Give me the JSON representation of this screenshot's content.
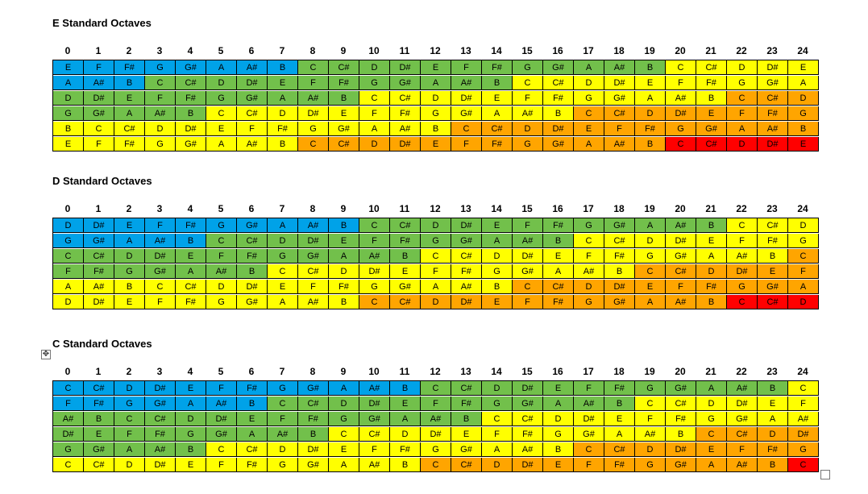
{
  "frets": [
    "0",
    "1",
    "2",
    "3",
    "4",
    "5",
    "6",
    "7",
    "8",
    "9",
    "10",
    "11",
    "12",
    "13",
    "14",
    "15",
    "16",
    "17",
    "18",
    "19",
    "20",
    "21",
    "22",
    "23",
    "24"
  ],
  "colors": {
    "B": "#00a2e8",
    "G": "#72c04b",
    "Y": "#ffff00",
    "O": "#ffa500",
    "R": "#ff0000"
  },
  "tables": [
    {
      "title": "E Standard Octaves",
      "rows": [
        {
          "notes": [
            "E",
            "F",
            "F#",
            "G",
            "G#",
            "A",
            "A#",
            "B",
            "C",
            "C#",
            "D",
            "D#",
            "E",
            "F",
            "F#",
            "G",
            "G#",
            "A",
            "A#",
            "B",
            "C",
            "C#",
            "D",
            "D#",
            "E"
          ],
          "colors": [
            "B",
            "B",
            "B",
            "B",
            "B",
            "B",
            "B",
            "B",
            "G",
            "G",
            "G",
            "G",
            "G",
            "G",
            "G",
            "G",
            "G",
            "G",
            "G",
            "G",
            "Y",
            "Y",
            "Y",
            "Y",
            "Y"
          ]
        },
        {
          "notes": [
            "A",
            "A#",
            "B",
            "C",
            "C#",
            "D",
            "D#",
            "E",
            "F",
            "F#",
            "G",
            "G#",
            "A",
            "A#",
            "B",
            "C",
            "C#",
            "D",
            "D#",
            "E",
            "F",
            "F#",
            "G",
            "G#",
            "A"
          ],
          "colors": [
            "B",
            "B",
            "B",
            "G",
            "G",
            "G",
            "G",
            "G",
            "G",
            "G",
            "G",
            "G",
            "G",
            "G",
            "G",
            "Y",
            "Y",
            "Y",
            "Y",
            "Y",
            "Y",
            "Y",
            "Y",
            "Y",
            "Y"
          ]
        },
        {
          "notes": [
            "D",
            "D#",
            "E",
            "F",
            "F#",
            "G",
            "G#",
            "A",
            "A#",
            "B",
            "C",
            "C#",
            "D",
            "D#",
            "E",
            "F",
            "F#",
            "G",
            "G#",
            "A",
            "A#",
            "B",
            "C",
            "C#",
            "D"
          ],
          "colors": [
            "G",
            "G",
            "G",
            "G",
            "G",
            "G",
            "G",
            "G",
            "G",
            "G",
            "Y",
            "Y",
            "Y",
            "Y",
            "Y",
            "Y",
            "Y",
            "Y",
            "Y",
            "Y",
            "Y",
            "Y",
            "O",
            "O",
            "O"
          ]
        },
        {
          "notes": [
            "G",
            "G#",
            "A",
            "A#",
            "B",
            "C",
            "C#",
            "D",
            "D#",
            "E",
            "F",
            "F#",
            "G",
            "G#",
            "A",
            "A#",
            "B",
            "C",
            "C#",
            "D",
            "D#",
            "E",
            "F",
            "F#",
            "G"
          ],
          "colors": [
            "G",
            "G",
            "G",
            "G",
            "G",
            "Y",
            "Y",
            "Y",
            "Y",
            "Y",
            "Y",
            "Y",
            "Y",
            "Y",
            "Y",
            "Y",
            "Y",
            "O",
            "O",
            "O",
            "O",
            "O",
            "O",
            "O",
            "O"
          ]
        },
        {
          "notes": [
            "B",
            "C",
            "C#",
            "D",
            "D#",
            "E",
            "F",
            "F#",
            "G",
            "G#",
            "A",
            "A#",
            "B",
            "C",
            "C#",
            "D",
            "D#",
            "E",
            "F",
            "F#",
            "G",
            "G#",
            "A",
            "A#",
            "B"
          ],
          "colors": [
            "Y",
            "Y",
            "Y",
            "Y",
            "Y",
            "Y",
            "Y",
            "Y",
            "Y",
            "Y",
            "Y",
            "Y",
            "Y",
            "O",
            "O",
            "O",
            "O",
            "O",
            "O",
            "O",
            "O",
            "O",
            "O",
            "O",
            "O"
          ]
        },
        {
          "notes": [
            "E",
            "F",
            "F#",
            "G",
            "G#",
            "A",
            "A#",
            "B",
            "C",
            "C#",
            "D",
            "D#",
            "E",
            "F",
            "F#",
            "G",
            "G#",
            "A",
            "A#",
            "B",
            "C",
            "C#",
            "D",
            "D#",
            "E"
          ],
          "colors": [
            "Y",
            "Y",
            "Y",
            "Y",
            "Y",
            "Y",
            "Y",
            "Y",
            "O",
            "O",
            "O",
            "O",
            "O",
            "O",
            "O",
            "O",
            "O",
            "O",
            "O",
            "O",
            "R",
            "R",
            "R",
            "R",
            "R"
          ]
        }
      ]
    },
    {
      "title": "D Standard Octaves",
      "rows": [
        {
          "notes": [
            "D",
            "D#",
            "E",
            "F",
            "F#",
            "G",
            "G#",
            "A",
            "A#",
            "B",
            "C",
            "C#",
            "D",
            "D#",
            "E",
            "F",
            "F#",
            "G",
            "G#",
            "A",
            "A#",
            "B",
            "C",
            "C#",
            "D"
          ],
          "colors": [
            "B",
            "B",
            "B",
            "B",
            "B",
            "B",
            "B",
            "B",
            "B",
            "B",
            "G",
            "G",
            "G",
            "G",
            "G",
            "G",
            "G",
            "G",
            "G",
            "G",
            "G",
            "G",
            "Y",
            "Y",
            "Y"
          ]
        },
        {
          "notes": [
            "G",
            "G#",
            "A",
            "A#",
            "B",
            "C",
            "C#",
            "D",
            "D#",
            "E",
            "F",
            "F#",
            "G",
            "G#",
            "A",
            "A#",
            "B",
            "C",
            "C#",
            "D",
            "D#",
            "E",
            "F",
            "F#",
            "G"
          ],
          "colors": [
            "B",
            "B",
            "B",
            "B",
            "B",
            "G",
            "G",
            "G",
            "G",
            "G",
            "G",
            "G",
            "G",
            "G",
            "G",
            "G",
            "G",
            "Y",
            "Y",
            "Y",
            "Y",
            "Y",
            "Y",
            "Y",
            "Y"
          ]
        },
        {
          "notes": [
            "C",
            "C#",
            "D",
            "D#",
            "E",
            "F",
            "F#",
            "G",
            "G#",
            "A",
            "A#",
            "B",
            "C",
            "C#",
            "D",
            "D#",
            "E",
            "F",
            "F#",
            "G",
            "G#",
            "A",
            "A#",
            "B",
            "C"
          ],
          "colors": [
            "G",
            "G",
            "G",
            "G",
            "G",
            "G",
            "G",
            "G",
            "G",
            "G",
            "G",
            "G",
            "Y",
            "Y",
            "Y",
            "Y",
            "Y",
            "Y",
            "Y",
            "Y",
            "Y",
            "Y",
            "Y",
            "Y",
            "O"
          ]
        },
        {
          "notes": [
            "F",
            "F#",
            "G",
            "G#",
            "A",
            "A#",
            "B",
            "C",
            "C#",
            "D",
            "D#",
            "E",
            "F",
            "F#",
            "G",
            "G#",
            "A",
            "A#",
            "B",
            "C",
            "C#",
            "D",
            "D#",
            "E",
            "F"
          ],
          "colors": [
            "G",
            "G",
            "G",
            "G",
            "G",
            "G",
            "G",
            "Y",
            "Y",
            "Y",
            "Y",
            "Y",
            "Y",
            "Y",
            "Y",
            "Y",
            "Y",
            "Y",
            "Y",
            "O",
            "O",
            "O",
            "O",
            "O",
            "O"
          ]
        },
        {
          "notes": [
            "A",
            "A#",
            "B",
            "C",
            "C#",
            "D",
            "D#",
            "E",
            "F",
            "F#",
            "G",
            "G#",
            "A",
            "A#",
            "B",
            "C",
            "C#",
            "D",
            "D#",
            "E",
            "F",
            "F#",
            "G",
            "G#",
            "A"
          ],
          "colors": [
            "Y",
            "Y",
            "Y",
            "Y",
            "Y",
            "Y",
            "Y",
            "Y",
            "Y",
            "Y",
            "Y",
            "Y",
            "Y",
            "Y",
            "Y",
            "O",
            "O",
            "O",
            "O",
            "O",
            "O",
            "O",
            "O",
            "O",
            "O"
          ]
        },
        {
          "notes": [
            "D",
            "D#",
            "E",
            "F",
            "F#",
            "G",
            "G#",
            "A",
            "A#",
            "B",
            "C",
            "C#",
            "D",
            "D#",
            "E",
            "F",
            "F#",
            "G",
            "G#",
            "A",
            "A#",
            "B",
            "C",
            "C#",
            "D"
          ],
          "colors": [
            "Y",
            "Y",
            "Y",
            "Y",
            "Y",
            "Y",
            "Y",
            "Y",
            "Y",
            "Y",
            "O",
            "O",
            "O",
            "O",
            "O",
            "O",
            "O",
            "O",
            "O",
            "O",
            "O",
            "O",
            "R",
            "R",
            "R"
          ]
        }
      ]
    },
    {
      "title": "C Standard Octaves",
      "rows": [
        {
          "notes": [
            "C",
            "C#",
            "D",
            "D#",
            "E",
            "F",
            "F#",
            "G",
            "G#",
            "A",
            "A#",
            "B",
            "C",
            "C#",
            "D",
            "D#",
            "E",
            "F",
            "F#",
            "G",
            "G#",
            "A",
            "A#",
            "B",
            "C"
          ],
          "colors": [
            "B",
            "B",
            "B",
            "B",
            "B",
            "B",
            "B",
            "B",
            "B",
            "B",
            "B",
            "B",
            "G",
            "G",
            "G",
            "G",
            "G",
            "G",
            "G",
            "G",
            "G",
            "G",
            "G",
            "G",
            "Y"
          ]
        },
        {
          "notes": [
            "F",
            "F#",
            "G",
            "G#",
            "A",
            "A#",
            "B",
            "C",
            "C#",
            "D",
            "D#",
            "E",
            "F",
            "F#",
            "G",
            "G#",
            "A",
            "A#",
            "B",
            "C",
            "C#",
            "D",
            "D#",
            "E",
            "F"
          ],
          "colors": [
            "B",
            "B",
            "B",
            "B",
            "B",
            "B",
            "B",
            "G",
            "G",
            "G",
            "G",
            "G",
            "G",
            "G",
            "G",
            "G",
            "G",
            "G",
            "G",
            "Y",
            "Y",
            "Y",
            "Y",
            "Y",
            "Y"
          ]
        },
        {
          "notes": [
            "A#",
            "B",
            "C",
            "C#",
            "D",
            "D#",
            "E",
            "F",
            "F#",
            "G",
            "G#",
            "A",
            "A#",
            "B",
            "C",
            "C#",
            "D",
            "D#",
            "E",
            "F",
            "F#",
            "G",
            "G#",
            "A",
            "A#"
          ],
          "colors": [
            "G",
            "G",
            "G",
            "G",
            "G",
            "G",
            "G",
            "G",
            "G",
            "G",
            "G",
            "G",
            "G",
            "G",
            "Y",
            "Y",
            "Y",
            "Y",
            "Y",
            "Y",
            "Y",
            "Y",
            "Y",
            "Y",
            "Y"
          ]
        },
        {
          "notes": [
            "D#",
            "E",
            "F",
            "F#",
            "G",
            "G#",
            "A",
            "A#",
            "B",
            "C",
            "C#",
            "D",
            "D#",
            "E",
            "F",
            "F#",
            "G",
            "G#",
            "A",
            "A#",
            "B",
            "C",
            "C#",
            "D",
            "D#"
          ],
          "colors": [
            "G",
            "G",
            "G",
            "G",
            "G",
            "G",
            "G",
            "G",
            "G",
            "Y",
            "Y",
            "Y",
            "Y",
            "Y",
            "Y",
            "Y",
            "Y",
            "Y",
            "Y",
            "Y",
            "Y",
            "O",
            "O",
            "O",
            "O"
          ]
        },
        {
          "notes": [
            "G",
            "G#",
            "A",
            "A#",
            "B",
            "C",
            "C#",
            "D",
            "D#",
            "E",
            "F",
            "F#",
            "G",
            "G#",
            "A",
            "A#",
            "B",
            "C",
            "C#",
            "D",
            "D#",
            "E",
            "F",
            "F#",
            "G"
          ],
          "colors": [
            "G",
            "G",
            "G",
            "G",
            "G",
            "Y",
            "Y",
            "Y",
            "Y",
            "Y",
            "Y",
            "Y",
            "Y",
            "Y",
            "Y",
            "Y",
            "Y",
            "O",
            "O",
            "O",
            "O",
            "O",
            "O",
            "O",
            "O"
          ]
        },
        {
          "notes": [
            "C",
            "C#",
            "D",
            "D#",
            "E",
            "F",
            "F#",
            "G",
            "G#",
            "A",
            "A#",
            "B",
            "C",
            "C#",
            "D",
            "D#",
            "E",
            "F",
            "F#",
            "G",
            "G#",
            "A",
            "A#",
            "B",
            "C"
          ],
          "colors": [
            "Y",
            "Y",
            "Y",
            "Y",
            "Y",
            "Y",
            "Y",
            "Y",
            "Y",
            "Y",
            "Y",
            "Y",
            "O",
            "O",
            "O",
            "O",
            "O",
            "O",
            "O",
            "O",
            "O",
            "O",
            "O",
            "O",
            "R"
          ]
        }
      ]
    }
  ]
}
